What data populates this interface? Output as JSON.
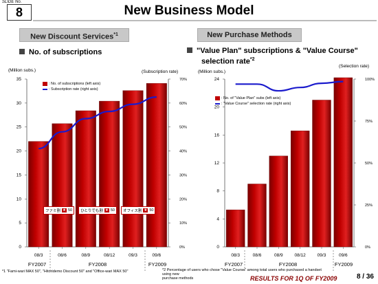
{
  "header": {
    "slide_no_label": "SLIDE No.",
    "slide_no": "8",
    "title": "New Business Model"
  },
  "left": {
    "section_prefix": "New Discount Services",
    "section_sup": "*1",
    "heading": "No. of subscriptions",
    "left_axis_unit": "(Million  subs.)",
    "right_axis_unit": "(Subscription rate)",
    "legend_bar": ": No. of subscriptions (left axis)",
    "legend_line": ": Subscription rate (right axis)",
    "badges": [
      "ファミ割",
      "ひとりでも割",
      "オフィス割"
    ],
    "badge_tail": "50",
    "footnote": "*1 \"Fami-wari MAX 50\", \"Hitoridemo Discount 50\" and \"Office-wari MAX 50\""
  },
  "right": {
    "section": "New Purchase Methods",
    "heading_line1": "\"Value Plan\" subscriptions & \"Value Course\"",
    "heading_line2": "selection rate",
    "heading_sup": "*2",
    "left_axis_unit": "(Million subs.)",
    "right_axis_unit": "(Selection rate)",
    "legend_bar": ": No. of \"Value Plan\" subs (left axis)",
    "legend_line": ": \"Value Course\" selection rate (right axis)",
    "footnote_line1": "*2 Percentage of users who chose \"Value Course\" among total users who purchased a handset  using new",
    "footnote_line2": "purchase methods"
  },
  "footer": {
    "brand": "RESULTS FOR 1Q OF FY2009",
    "page": "8 / 36"
  },
  "colors": {
    "bar": "#c00000",
    "bar_dark": "#7a0000",
    "line": "#1a1acc"
  },
  "chart_data": [
    {
      "type": "bar",
      "categories": [
        "08/3",
        "08/6",
        "08/9",
        "08/12",
        "09/3",
        "09/6"
      ],
      "fiscal_years": [
        "FY2007",
        "FY2008",
        "FY2009"
      ],
      "series": [
        {
          "name": "No. of subscriptions",
          "axis": "left",
          "type": "bar",
          "values": [
            22,
            25.7,
            28.4,
            30.4,
            32.6,
            34.1
          ]
        },
        {
          "name": "Subscription rate",
          "axis": "right",
          "type": "line",
          "values": [
            41,
            48,
            53.5,
            56.5,
            59.5,
            62.5
          ]
        }
      ],
      "ylim": [
        0,
        35
      ],
      "yticks": [
        0,
        5,
        10,
        15,
        20,
        25,
        30,
        35
      ],
      "y2lim": [
        0,
        70
      ],
      "y2ticks": [
        "0%",
        "10%",
        "20%",
        "30%",
        "40%",
        "50%",
        "60%",
        "70%"
      ],
      "grid": false,
      "legend": "top-left"
    },
    {
      "type": "bar",
      "categories": [
        "08/3",
        "08/6",
        "08/9",
        "08/12",
        "09/3",
        "09/6"
      ],
      "fiscal_years": [
        "FY2007",
        "FY2008",
        "FY2009"
      ],
      "series": [
        {
          "name": "No. of \"Value Plan\" subs",
          "axis": "left",
          "type": "bar",
          "values": [
            5.3,
            9,
            13,
            16.6,
            21,
            24.2
          ]
        },
        {
          "name": "\"Value Course\" selection rate",
          "axis": "right",
          "type": "line",
          "values": [
            97,
            97,
            93,
            95,
            97.5,
            98.5
          ]
        }
      ],
      "ylim": [
        0,
        24
      ],
      "yticks": [
        0,
        4,
        8,
        12,
        16,
        20,
        24
      ],
      "y2lim": [
        0,
        100
      ],
      "y2ticks": [
        "0%",
        "25%",
        "50%",
        "75%",
        "100%"
      ],
      "grid": false,
      "legend": "top-left"
    }
  ]
}
